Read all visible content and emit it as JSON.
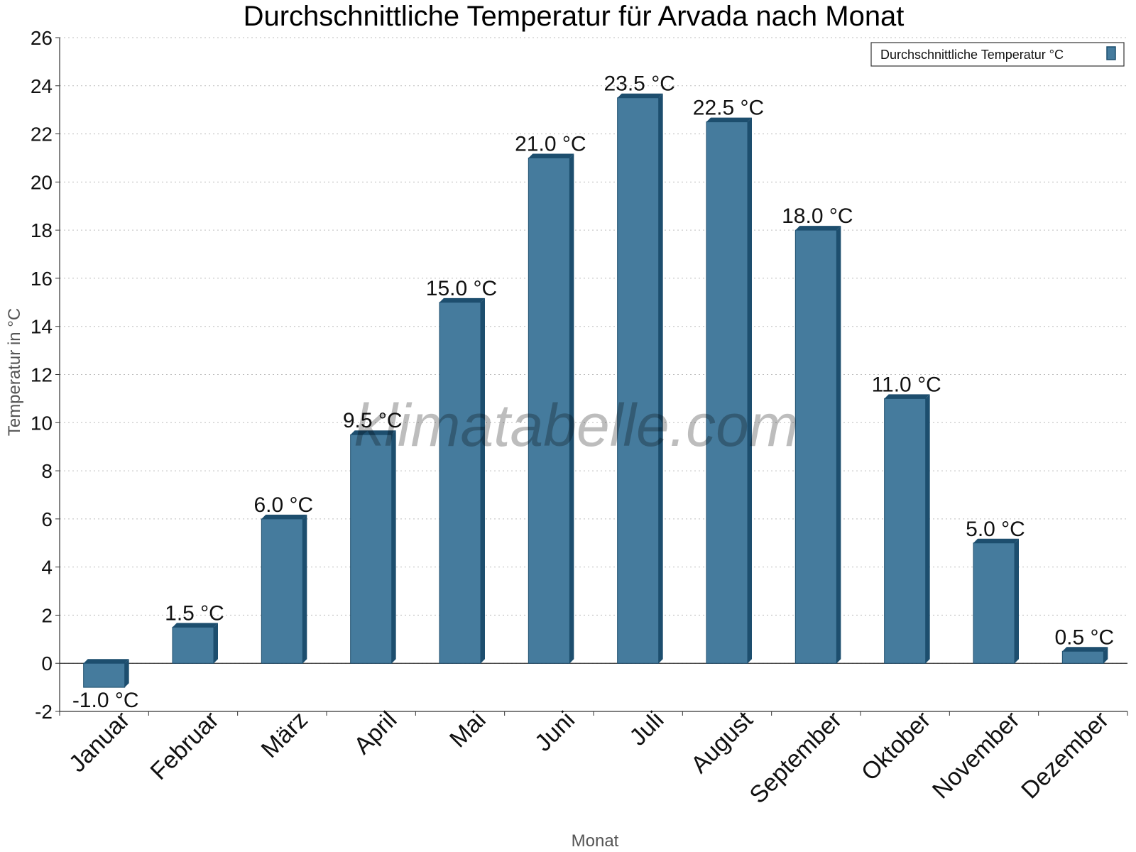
{
  "chart_data": {
    "type": "bar",
    "title": "Durchschnittliche Temperatur für Arvada nach Monat",
    "xlabel": "Monat",
    "ylabel": "Temperatur in °C",
    "ylim": [
      -2,
      26
    ],
    "yticks": [
      -2,
      0,
      2,
      4,
      6,
      8,
      10,
      12,
      14,
      16,
      18,
      20,
      22,
      24,
      26
    ],
    "grid": true,
    "legend_position": "top-right",
    "categories": [
      "Januar",
      "Februar",
      "März",
      "April",
      "Mai",
      "Juni",
      "Juli",
      "August",
      "September",
      "Oktober",
      "November",
      "Dezember"
    ],
    "series": [
      {
        "name": "Durchschnittliche Temperatur °C",
        "color": "#457b9d",
        "values": [
          -1.0,
          1.5,
          6.0,
          9.5,
          15.0,
          21.0,
          23.5,
          22.5,
          18.0,
          11.0,
          5.0,
          0.5
        ],
        "labels": [
          "-1.0 °C",
          "1.5 °C",
          "6.0 °C",
          "9.5 °C",
          "15.0 °C",
          "21.0 °C",
          "23.5 °C",
          "22.5 °C",
          "18.0 °C",
          "11.0 °C",
          "5.0 °C",
          "0.5 °C"
        ]
      }
    ],
    "watermark": "klimatabelle.com"
  },
  "colors": {
    "bar_front": "#457b9d",
    "bar_side": "#1d4e6e",
    "grid": "#bdbdbd"
  }
}
